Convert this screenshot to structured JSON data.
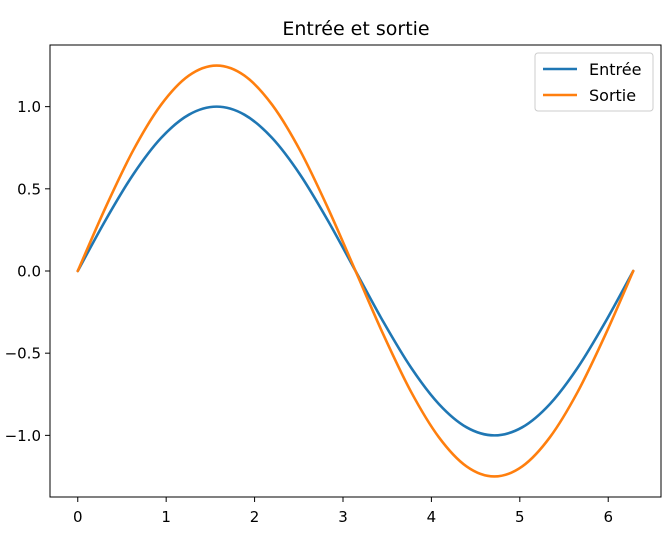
{
  "chart_data": {
    "type": "line",
    "title": "Entrée et sortie",
    "xlabel": "",
    "ylabel": "",
    "xlim": [
      -0.314,
      6.597
    ],
    "ylim": [
      -1.375,
      1.375
    ],
    "x_ticks": [
      0,
      1,
      2,
      3,
      4,
      5,
      6
    ],
    "x_tick_labels": [
      "0",
      "1",
      "2",
      "3",
      "4",
      "5",
      "6"
    ],
    "y_ticks": [
      -1.0,
      -0.5,
      0.0,
      0.5,
      1.0
    ],
    "y_tick_labels": [
      "−1.0",
      "−0.5",
      "0.0",
      "0.5",
      "1.0"
    ],
    "grid": false,
    "legend": {
      "position": "top-right"
    },
    "x": [
      0,
      0.314,
      0.628,
      0.942,
      1.257,
      1.571,
      1.885,
      2.199,
      2.513,
      2.827,
      3.142,
      3.456,
      3.77,
      4.084,
      4.398,
      4.712,
      5.027,
      5.341,
      5.655,
      5.969,
      6.283
    ],
    "series": [
      {
        "name": "Entrée",
        "color": "#1f77b4",
        "values": [
          0,
          0.309,
          0.588,
          0.809,
          0.951,
          1.0,
          0.951,
          0.809,
          0.588,
          0.309,
          0,
          -0.309,
          -0.588,
          -0.809,
          -0.951,
          -1.0,
          -0.951,
          -0.809,
          -0.588,
          -0.309,
          0
        ]
      },
      {
        "name": "Sortie",
        "color": "#ff7f0e",
        "values": [
          0,
          0.386,
          0.735,
          1.011,
          1.189,
          1.25,
          1.189,
          1.011,
          0.735,
          0.386,
          0,
          -0.386,
          -0.735,
          -1.011,
          -1.189,
          -1.25,
          -1.189,
          -1.011,
          -0.735,
          -0.386,
          0
        ]
      }
    ]
  }
}
